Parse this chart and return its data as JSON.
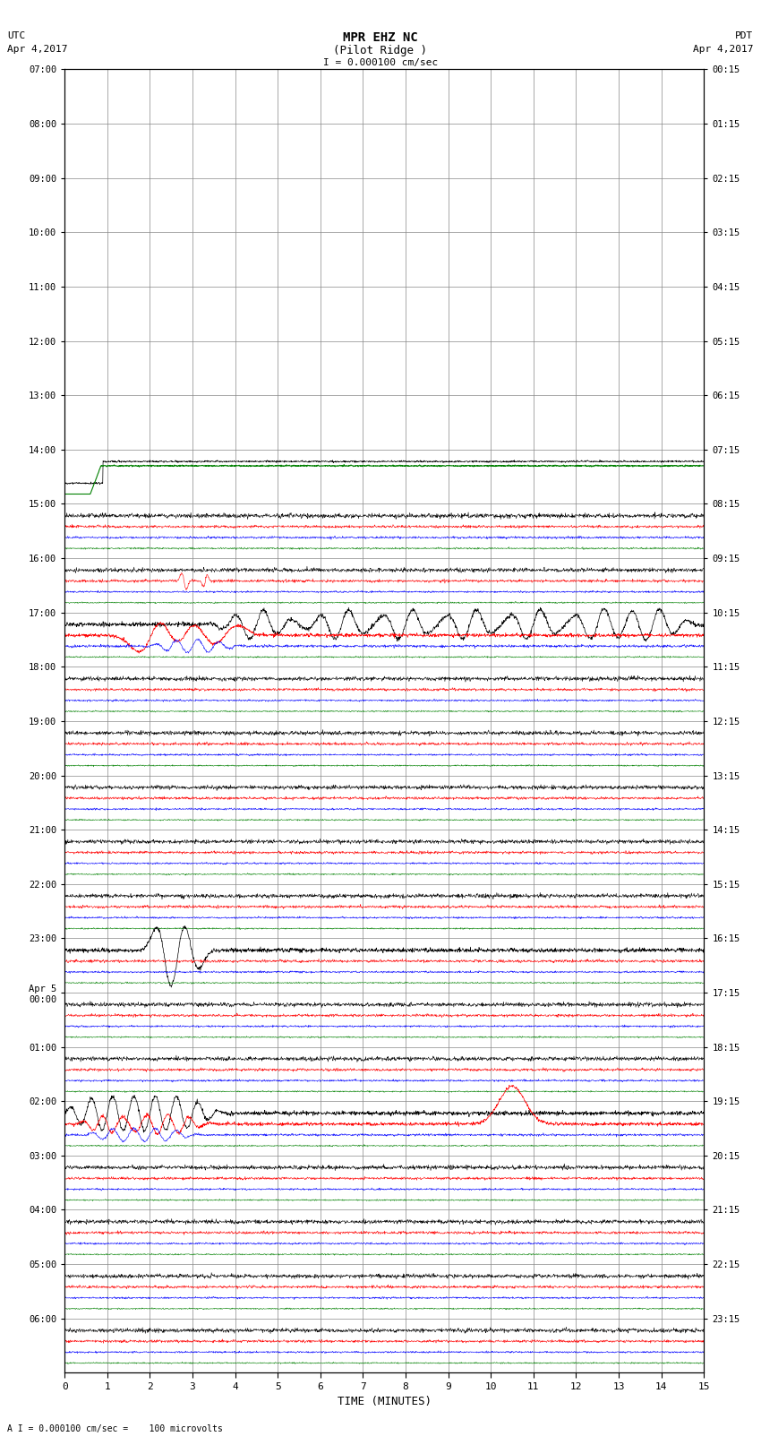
{
  "title_line1": "MPR EHZ NC",
  "title_line2": "(Pilot Ridge )",
  "title_line3": "I = 0.000100 cm/sec",
  "left_header1": "UTC",
  "left_header2": "Apr 4,2017",
  "right_header1": "PDT",
  "right_header2": "Apr 4,2017",
  "xlabel": "TIME (MINUTES)",
  "footer": "A I = 0.000100 cm/sec =    100 microvolts",
  "utc_times": [
    "07:00",
    "08:00",
    "09:00",
    "10:00",
    "11:00",
    "12:00",
    "13:00",
    "14:00",
    "15:00",
    "16:00",
    "17:00",
    "18:00",
    "19:00",
    "20:00",
    "21:00",
    "22:00",
    "23:00",
    "Apr 5\n00:00",
    "01:00",
    "02:00",
    "03:00",
    "04:00",
    "05:00",
    "06:00"
  ],
  "pdt_times": [
    "00:15",
    "01:15",
    "02:15",
    "03:15",
    "04:15",
    "05:15",
    "06:15",
    "07:15",
    "08:15",
    "09:15",
    "10:15",
    "11:15",
    "12:15",
    "13:15",
    "14:15",
    "15:15",
    "16:15",
    "17:15",
    "18:15",
    "19:15",
    "20:15",
    "21:15",
    "22:15",
    "23:15"
  ],
  "n_rows": 24,
  "minutes": 15,
  "background_color": "#ffffff",
  "grid_color": "#888888"
}
